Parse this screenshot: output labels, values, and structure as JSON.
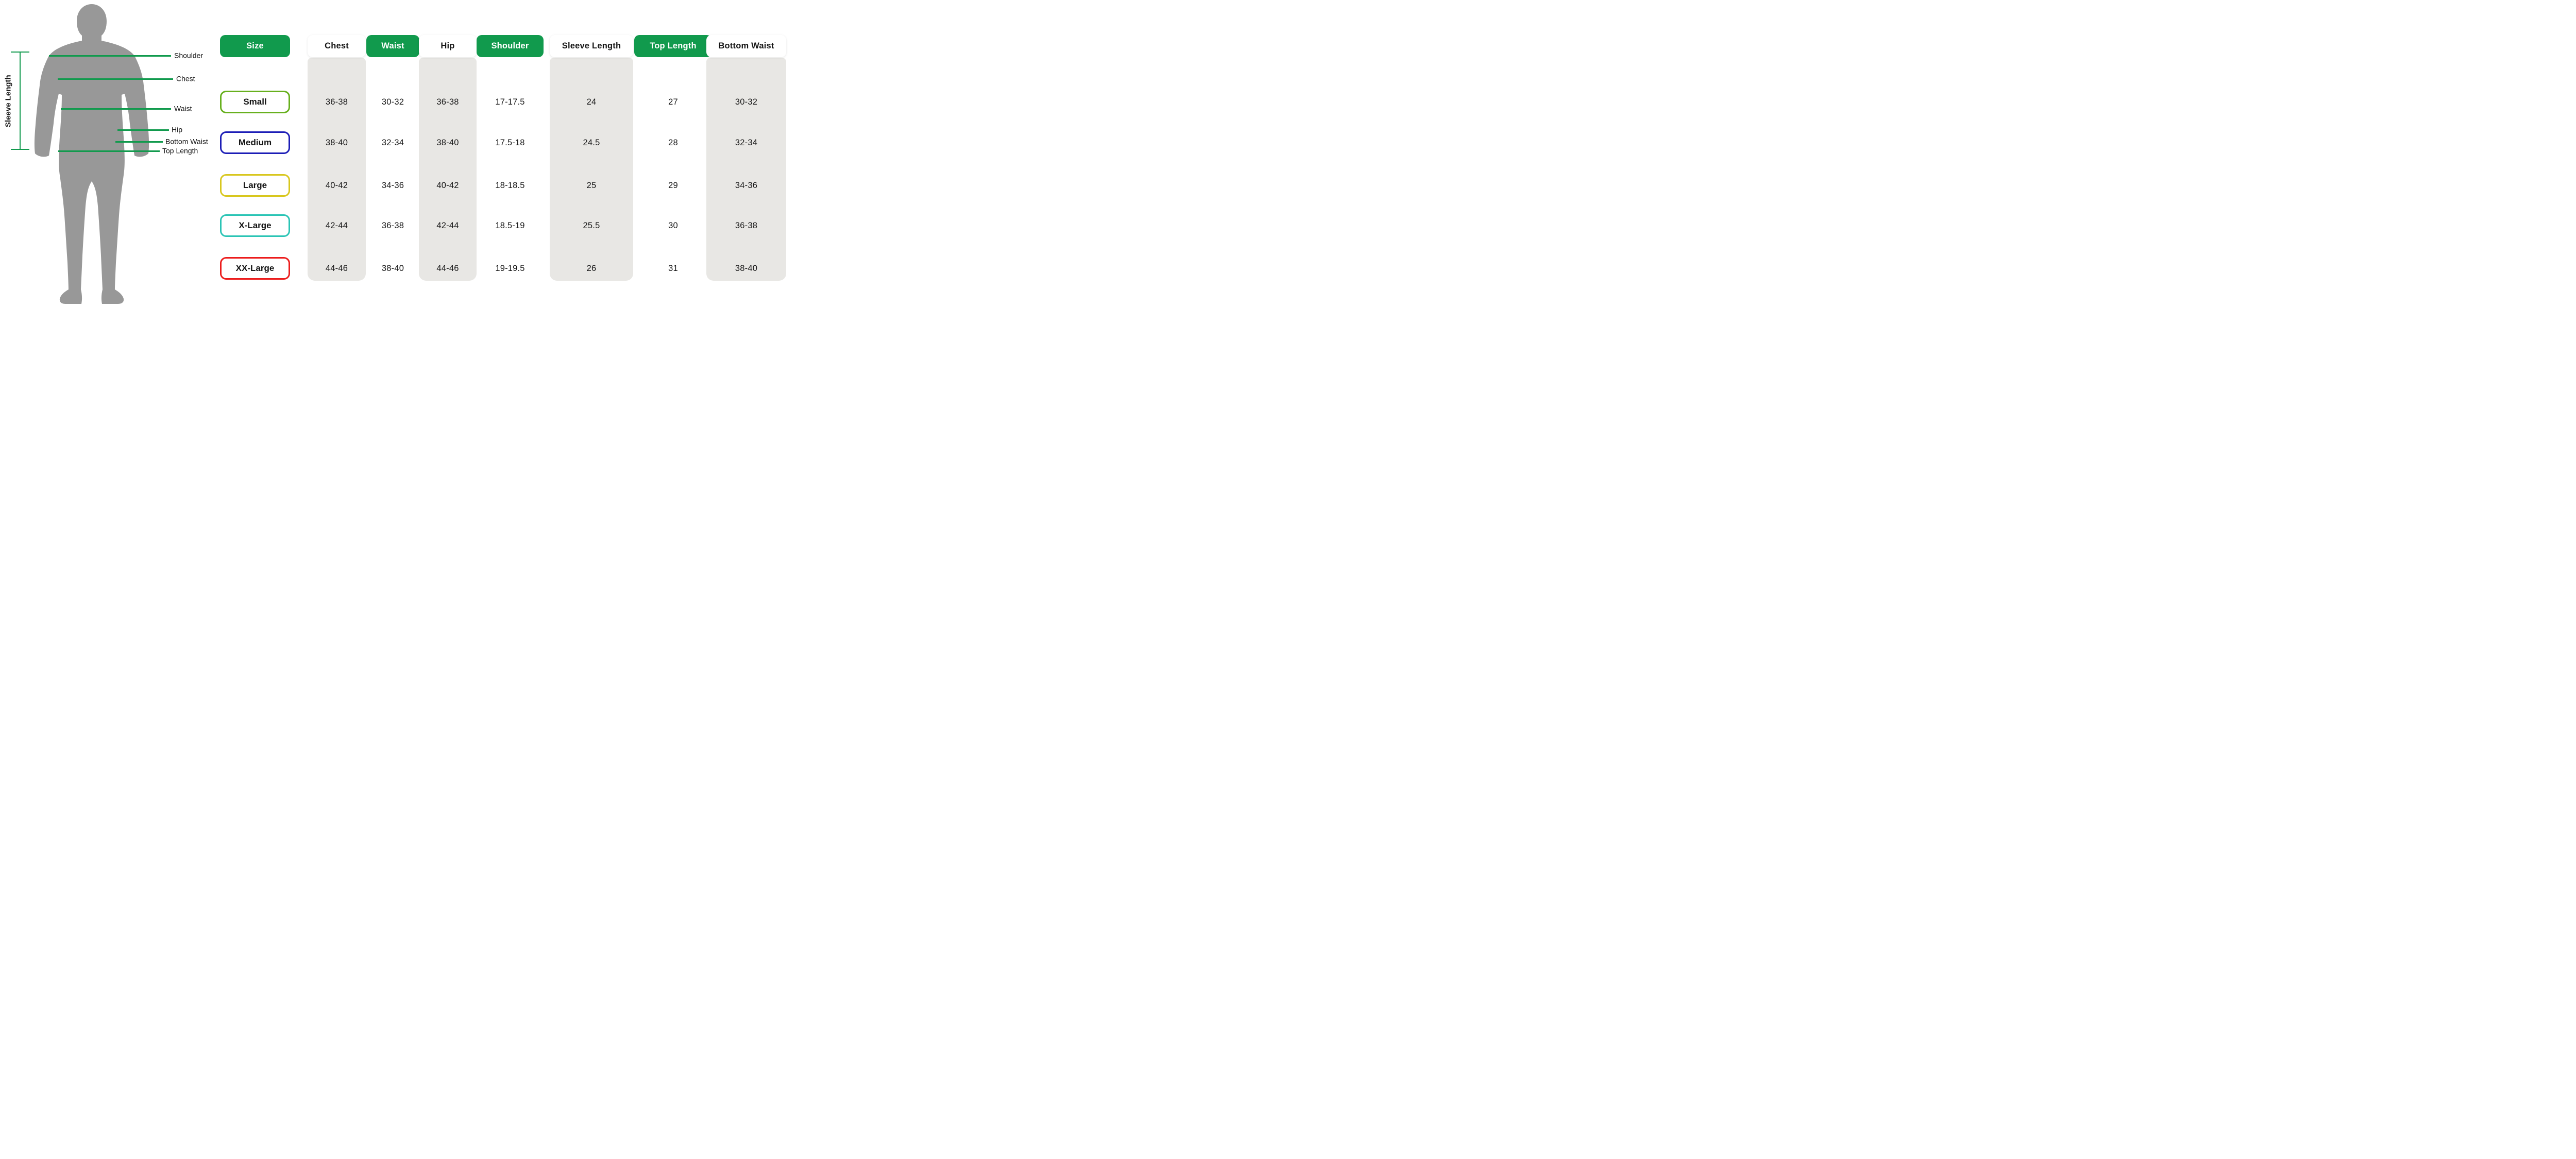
{
  "figure": {
    "sleeve_length_label": "Sleeve Length",
    "measurement_labels": [
      "Shoulder",
      "Chest",
      "Waist",
      "Hip",
      "Bottom Waist",
      "Top Length"
    ],
    "body_color": "#989898",
    "line_color": "#119a4d"
  },
  "table": {
    "size_header": "Size",
    "columns": [
      {
        "id": "chest",
        "label": "Chest",
        "style": "light"
      },
      {
        "id": "waist",
        "label": "Waist",
        "style": "green"
      },
      {
        "id": "hip",
        "label": "Hip",
        "style": "light"
      },
      {
        "id": "shoulder",
        "label": "Shoulder",
        "style": "green"
      },
      {
        "id": "sleeve_length",
        "label": "Sleeve Length",
        "style": "light"
      },
      {
        "id": "top_length",
        "label": "Top Length",
        "style": "green"
      },
      {
        "id": "bottom_waist",
        "label": "Bottom Waist",
        "style": "light"
      }
    ],
    "rows": [
      {
        "size": "Small",
        "border_color": "#67b01e",
        "values": {
          "chest": "36-38",
          "waist": "30-32",
          "hip": "36-38",
          "shoulder": "17-17.5",
          "sleeve_length": "24",
          "top_length": "27",
          "bottom_waist": "30-32"
        }
      },
      {
        "size": "Medium",
        "border_color": "#1c1db6",
        "values": {
          "chest": "38-40",
          "waist": "32-34",
          "hip": "38-40",
          "shoulder": "17.5-18",
          "sleeve_length": "24.5",
          "top_length": "28",
          "bottom_waist": "32-34"
        }
      },
      {
        "size": "Large",
        "border_color": "#d8c71e",
        "values": {
          "chest": "40-42",
          "waist": "34-36",
          "hip": "40-42",
          "shoulder": "18-18.5",
          "sleeve_length": "25",
          "top_length": "29",
          "bottom_waist": "34-36"
        }
      },
      {
        "size": "X-Large",
        "border_color": "#2ac4b5",
        "values": {
          "chest": "42-44",
          "waist": "36-38",
          "hip": "42-44",
          "shoulder": "18.5-19",
          "sleeve_length": "25.5",
          "top_length": "30",
          "bottom_waist": "36-38"
        }
      },
      {
        "size": "XX-Large",
        "border_color": "#ec1c1c",
        "values": {
          "chest": "44-46",
          "waist": "38-40",
          "hip": "44-46",
          "shoulder": "19-19.5",
          "sleeve_length": "26",
          "top_length": "31",
          "bottom_waist": "38-40"
        }
      }
    ]
  },
  "colors": {
    "header_green": "#119a4d",
    "stripe_gray": "#e8e7e4",
    "body_gray": "#989898"
  }
}
